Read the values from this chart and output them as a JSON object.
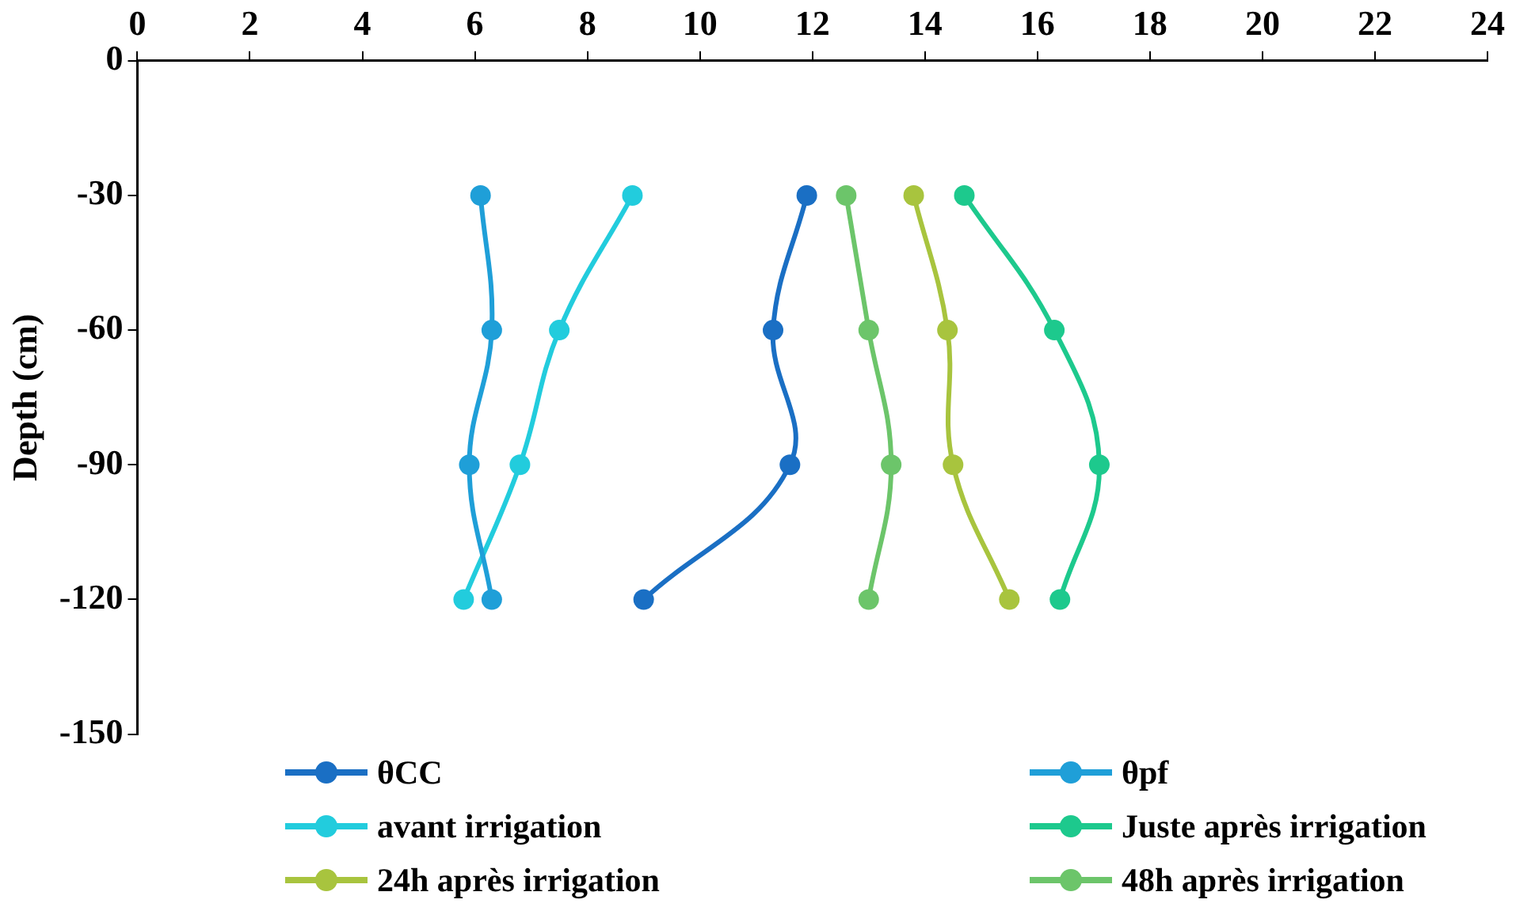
{
  "chart_data": {
    "type": "line",
    "ylabel": "Depth (cm)",
    "xlim": [
      0,
      24
    ],
    "xticks": [
      0,
      2,
      4,
      6,
      8,
      10,
      12,
      14,
      16,
      18,
      20,
      22,
      24
    ],
    "ylim": [
      -150,
      0
    ],
    "yticks": [
      0,
      -30,
      -60,
      -90,
      -120,
      -150
    ],
    "grid": false,
    "legend": "bottom",
    "marker": "circle",
    "line_style": "solid",
    "series": [
      {
        "name": "θCC",
        "color": "#1a6fc4",
        "x": [
          11.9,
          11.3,
          11.6,
          9.0
        ],
        "values": [
          -30,
          -60,
          -90,
          -120
        ]
      },
      {
        "name": "θpf",
        "color": "#1f9fd8",
        "x": [
          6.1,
          6.3,
          5.9,
          6.3
        ],
        "values": [
          -30,
          -60,
          -90,
          -120
        ]
      },
      {
        "name": "avant irrigation",
        "color": "#22ccdd",
        "x": [
          8.8,
          7.5,
          6.8,
          5.8
        ],
        "values": [
          -30,
          -60,
          -90,
          -120
        ]
      },
      {
        "name": "Juste après irrigation",
        "color": "#1dc98d",
        "x": [
          14.7,
          16.3,
          17.1,
          16.4
        ],
        "values": [
          -30,
          -60,
          -90,
          -120
        ]
      },
      {
        "name": "24h après irrigation",
        "color": "#a8c43e",
        "x": [
          13.8,
          14.4,
          14.5,
          15.5
        ],
        "values": [
          -30,
          -60,
          -90,
          -120
        ]
      },
      {
        "name": "48h après irrigation",
        "color": "#6cc56a",
        "x": [
          12.6,
          13.0,
          13.4,
          13.0
        ],
        "values": [
          -30,
          -60,
          -90,
          -120
        ]
      }
    ]
  }
}
